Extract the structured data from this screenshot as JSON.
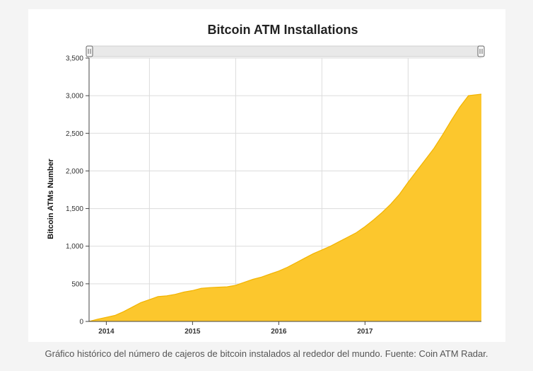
{
  "caption": "Gráfico histórico del número de cajeros de bitcoin instalados al rededor del mundo. Fuente: Coin ATM Radar.",
  "chart_data": {
    "type": "area",
    "title": "Bitcoin ATM Installations",
    "xlabel": "",
    "ylabel": "Bitcoin ATMs Number",
    "ylim": [
      0,
      3500
    ],
    "yticks": [
      0,
      500,
      1000,
      1500,
      2000,
      2500,
      3000,
      3500
    ],
    "ytick_labels": [
      "0",
      "500",
      "1,000",
      "1,500",
      "2,000",
      "2,500",
      "3,000",
      "3,500"
    ],
    "xlim": [
      2013.8,
      2018.35
    ],
    "xticks": [
      2014,
      2015,
      2016,
      2017
    ],
    "xtick_labels": [
      "2014",
      "2015",
      "2016",
      "2017"
    ],
    "xgrid": [
      2013.5,
      2014.5,
      2015.5,
      2016.5,
      2017.5
    ],
    "grid": true,
    "legend": "none",
    "fill_color": "#fcc72d",
    "line_color": "#f2b400",
    "x": [
      2013.8,
      2013.9,
      2014.0,
      2014.1,
      2014.2,
      2014.3,
      2014.4,
      2014.5,
      2014.6,
      2014.7,
      2014.8,
      2014.9,
      2015.0,
      2015.1,
      2015.2,
      2015.3,
      2015.4,
      2015.5,
      2015.6,
      2015.7,
      2015.8,
      2015.9,
      2016.0,
      2016.1,
      2016.2,
      2016.3,
      2016.4,
      2016.5,
      2016.6,
      2016.7,
      2016.8,
      2016.9,
      2017.0,
      2017.1,
      2017.2,
      2017.3,
      2017.4,
      2017.5,
      2017.6,
      2017.7,
      2017.8,
      2017.9,
      2018.0,
      2018.1,
      2018.2,
      2018.35
    ],
    "values": [
      0,
      30,
      55,
      80,
      130,
      190,
      250,
      290,
      330,
      340,
      360,
      390,
      410,
      440,
      450,
      455,
      460,
      480,
      520,
      560,
      590,
      630,
      670,
      720,
      780,
      840,
      900,
      950,
      1000,
      1060,
      1120,
      1180,
      1260,
      1350,
      1450,
      1560,
      1690,
      1850,
      2000,
      2150,
      2300,
      2480,
      2670,
      2850,
      3000,
      3020
    ]
  },
  "slider": {
    "handle_left_icon": "slider-handle-grip-icon",
    "handle_right_icon": "slider-handle-grip-icon"
  }
}
